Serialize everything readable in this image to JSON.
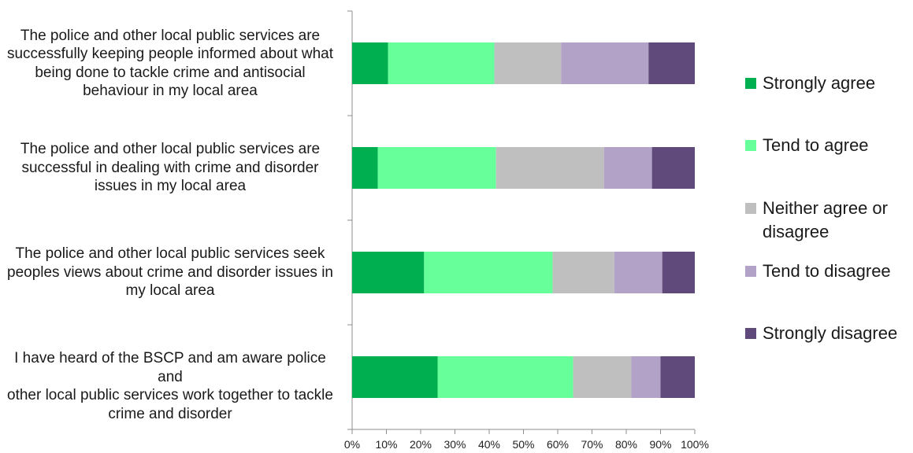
{
  "chart_data": {
    "type": "bar",
    "orientation": "horizontal",
    "stacked": true,
    "xlim": [
      0,
      100
    ],
    "x_ticks": [
      "0%",
      "10%",
      "20%",
      "30%",
      "40%",
      "50%",
      "60%",
      "70%",
      "80%",
      "90%",
      "100%"
    ],
    "grid": false,
    "legend_position": "right",
    "categories": [
      "The police and other local public services are successfully keeping people informed about what being done to tackle crime and antisocial behaviour in my local area",
      "The police and other local public services are successful in dealing with crime and disorder issues in my local area",
      "The police and other local public services seek peoples views about crime and disorder issues in my local area",
      "I have heard of the BSCP and am aware police and other local public services work together to tackle crime and disorder"
    ],
    "category_lines": [
      [
        "The police and other local public services are",
        "successfully keeping people informed about what",
        "being done to tackle crime and antisocial",
        "behaviour in my local area"
      ],
      [
        "The police and other local public services are",
        "successful in dealing with crime and disorder",
        "issues in my local area"
      ],
      [
        "The police and other local public services seek",
        "peoples views about crime and disorder issues in",
        "my local area"
      ],
      [
        "I have heard of the BSCP and am aware police and",
        "other local public services work together to tackle",
        "crime and disorder"
      ]
    ],
    "series": [
      {
        "name": "Strongly agree",
        "color": "#00b050",
        "values": [
          10.5,
          7.5,
          21,
          25
        ]
      },
      {
        "name": "Tend to agree",
        "color": "#66ff99",
        "values": [
          31,
          34.5,
          37.5,
          39.5
        ]
      },
      {
        "name": "Neither agree or disagree",
        "color": "#bfbfbf",
        "values": [
          19.5,
          31.5,
          18,
          17
        ]
      },
      {
        "name": "Tend to disagree",
        "color": "#b3a2c7",
        "values": [
          25.5,
          14,
          14,
          8.5
        ]
      },
      {
        "name": "Strongly disagree",
        "color": "#604a7b",
        "values": [
          13.5,
          12.5,
          9.5,
          10
        ]
      }
    ],
    "legend_lines": [
      [
        "Strongly agree"
      ],
      [
        "Tend to agree"
      ],
      [
        "Neither agree or",
        "disagree"
      ],
      [
        "Tend to disagree"
      ],
      [
        "Strongly disagree"
      ]
    ]
  }
}
